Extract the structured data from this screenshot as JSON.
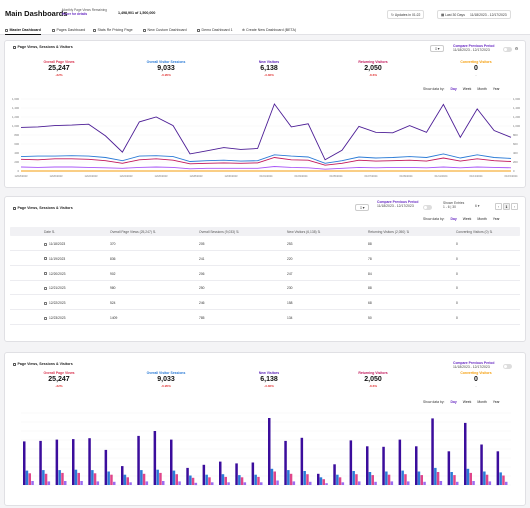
{
  "header": {
    "title": "Main Dashboards",
    "quota_label": "Monthly Page Views Remaining",
    "quota_hover": "Hover for details",
    "quota_value": "1,498,901 of 1,500,000",
    "updates_label": "Updates in 01:22",
    "range_preset": "Last 30 Days",
    "range_dates": "11/18/2023 - 12/17/2023"
  },
  "tabs": [
    {
      "label": "Master Dashboard"
    },
    {
      "label": "Pages Dashboard"
    },
    {
      "label": "Stats Re Pricing Page"
    },
    {
      "label": "New Custom Dashboard"
    },
    {
      "label": "Demo Dashboard 1"
    },
    {
      "label": "Create New Dashboard (BETA)"
    }
  ],
  "compare": {
    "label": "Compare Previous Period",
    "range": "11/18/2023 - 12/17/2023"
  },
  "show_data_by": {
    "label": "Show data by:",
    "options": [
      "Day",
      "Week",
      "Month",
      "Year"
    ],
    "selected": "Day"
  },
  "stats": [
    {
      "label": "Overall Page Views",
      "value": "25,247",
      "change": "-32%",
      "color": "#d9334f"
    },
    {
      "label": "Overall Visitor Sessions",
      "value": "9,033",
      "change": "-6.95%",
      "color": "#2b7bd6"
    },
    {
      "label": "New Visitors",
      "value": "6,138",
      "change": "-3.36%",
      "color": "#5b21b6"
    },
    {
      "label": "Returning Visitors",
      "value": "2,050",
      "change": "-8.6%",
      "color": "#c2185b"
    },
    {
      "label": "Converting Visitors",
      "value": "0",
      "change": "--",
      "color": "#f59e0b"
    }
  ],
  "card1": {
    "title": "Page Views, Sessions & Visitors"
  },
  "card2": {
    "title": "Page Views, Sessions & Visitors"
  },
  "card3": {
    "title": "Page Views, Sessions & Visitors"
  },
  "table": {
    "entries_label": "Shown Entries",
    "entries_range": "1 - 6 | 30",
    "page_current": "1",
    "page_size": "6",
    "headers": [
      "Date",
      "Overall Page Views (25,247)",
      "Overall Sessions (9,033)",
      "New Visitors (6,138)",
      "Returning Visitors (2,050)",
      "Converting Visitors (0)"
    ],
    "rows": [
      [
        "11/18/2023",
        "370",
        "205",
        "253",
        "88",
        "0"
      ],
      [
        "11/19/2023",
        "836",
        "241",
        "220",
        "78",
        "0"
      ],
      [
        "12/20/2023",
        "902",
        "206",
        "247",
        "84",
        "0"
      ],
      [
        "12/21/2023",
        "980",
        "250",
        "230",
        "88",
        "0"
      ],
      [
        "12/22/2023",
        "524",
        "246",
        "158",
        "68",
        "0"
      ],
      [
        "12/23/2023",
        "1409",
        "785",
        "134",
        "50",
        "0"
      ]
    ]
  },
  "chart_data": [
    {
      "type": "line",
      "y_ticks": [
        0,
        200,
        400,
        600,
        800,
        1000,
        1200,
        1400,
        1600
      ],
      "ylim": [
        0,
        1600
      ],
      "x_tick_labels": [
        "12/18/2023",
        "12/20/2023",
        "12/22/2023",
        "12/24/2023",
        "12/26/2023",
        "12/28/2023",
        "12/30/2023",
        "01/01/2024",
        "01/03/2024",
        "01/05/2024",
        "01/07/2024",
        "01/09/2024",
        "01/11/2024",
        "01/13/2024",
        "01/15/2024"
      ],
      "series": [
        {
          "color": "#4c1d95",
          "values": [
            970,
            980,
            1010,
            1020,
            1040,
            780,
            420,
            1090,
            1200,
            1010,
            380,
            450,
            520,
            480,
            500,
            1490,
            980,
            1050,
            250,
            460,
            990,
            860,
            850,
            1010,
            860,
            1480,
            750,
            1380,
            900,
            750
          ]
        },
        {
          "color": "#2b7bd6",
          "values": [
            320,
            330,
            330,
            340,
            330,
            300,
            230,
            330,
            340,
            320,
            210,
            230,
            240,
            220,
            230,
            360,
            330,
            310,
            170,
            230,
            310,
            290,
            300,
            320,
            300,
            380,
            290,
            360,
            300,
            280
          ]
        },
        {
          "color": "#c2185b",
          "values": [
            260,
            250,
            270,
            270,
            260,
            230,
            170,
            250,
            270,
            240,
            160,
            170,
            180,
            170,
            180,
            300,
            250,
            240,
            130,
            170,
            240,
            220,
            230,
            240,
            220,
            290,
            220,
            270,
            230,
            210
          ]
        },
        {
          "color": "#a855f7",
          "values": [
            90,
            80,
            90,
            90,
            80,
            70,
            60,
            80,
            90,
            80,
            50,
            60,
            60,
            60,
            60,
            100,
            80,
            70,
            40,
            60,
            80,
            70,
            80,
            80,
            70,
            90,
            70,
            90,
            80,
            70
          ]
        },
        {
          "color": "#f59e0b",
          "values": [
            0,
            0,
            0,
            0,
            0,
            0,
            0,
            0,
            0,
            0,
            0,
            0,
            0,
            0,
            0,
            0,
            0,
            0,
            0,
            0,
            0,
            0,
            0,
            0,
            0,
            0,
            0,
            0,
            0,
            0
          ]
        }
      ]
    },
    {
      "type": "bar",
      "ylim": [
        0,
        1600
      ],
      "series": [
        {
          "color": "#3b0d9c",
          "values": [
            970,
            980,
            1010,
            1020,
            1040,
            780,
            420,
            1090,
            1200,
            1010,
            380,
            450,
            520,
            480,
            500,
            1490,
            980,
            1050,
            250,
            460,
            990,
            860,
            850,
            1010,
            860,
            1480,
            750,
            1380,
            900,
            750
          ]
        },
        {
          "color": "#2b7bd6",
          "values": [
            320,
            330,
            330,
            340,
            330,
            300,
            230,
            330,
            340,
            320,
            210,
            230,
            240,
            220,
            230,
            360,
            330,
            310,
            170,
            230,
            310,
            290,
            300,
            320,
            300,
            380,
            290,
            360,
            300,
            280
          ]
        },
        {
          "color": "#e0458a",
          "values": [
            260,
            250,
            270,
            270,
            260,
            230,
            170,
            250,
            270,
            240,
            160,
            170,
            180,
            170,
            180,
            300,
            250,
            240,
            130,
            170,
            240,
            220,
            230,
            240,
            220,
            290,
            220,
            270,
            230,
            210
          ]
        },
        {
          "color": "#9b6bf0",
          "values": [
            90,
            80,
            90,
            90,
            80,
            70,
            60,
            80,
            90,
            80,
            50,
            60,
            60,
            60,
            60,
            100,
            80,
            70,
            40,
            60,
            80,
            70,
            80,
            80,
            70,
            90,
            70,
            90,
            80,
            70
          ]
        }
      ]
    }
  ]
}
